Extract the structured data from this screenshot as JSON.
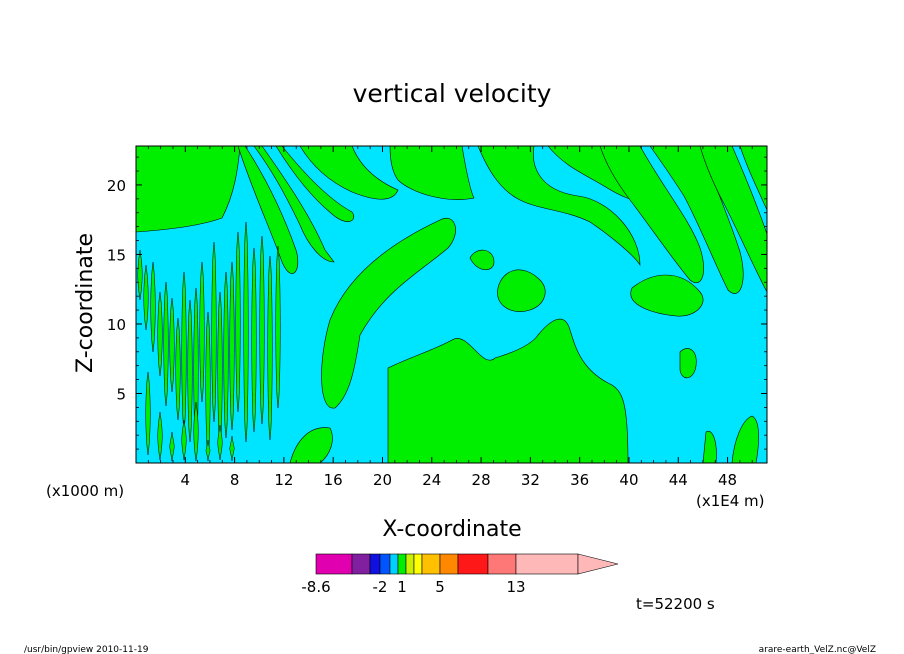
{
  "chart_data": {
    "type": "heatmap",
    "title": "vertical velocity",
    "xlabel": "X-coordinate",
    "ylabel": "Z-coordinate",
    "x_unit_left": "(x1000 m)",
    "x_unit_right": "(x1E4 m)",
    "x_ticks": [
      "4",
      "8",
      "12",
      "16",
      "20",
      "24",
      "28",
      "32",
      "36",
      "40",
      "44",
      "48"
    ],
    "y_ticks": [
      "5",
      "10",
      "15",
      "20"
    ],
    "xlim": [
      0,
      51.2
    ],
    "ylim": [
      0,
      22.8
    ],
    "fill_colors": {
      "negative": "#00e5ff",
      "positive": "#00ee00"
    },
    "colorbar": {
      "colors": [
        "#e000b0",
        "#8020a0",
        "#1010e0",
        "#0055ff",
        "#00d0ff",
        "#00ee00",
        "#c8f000",
        "#ffff00",
        "#ffc000",
        "#ff8800",
        "#ff1818",
        "#ff7878",
        "#ffb8b8"
      ],
      "labels": [
        "-8.6",
        "-2",
        "1",
        "5",
        "13"
      ]
    },
    "time_label": "t=52200 s"
  },
  "footer": {
    "left": "/usr/bin/gpview   2010-11-19",
    "right": "arare-earth_VelZ.nc@VelZ"
  }
}
